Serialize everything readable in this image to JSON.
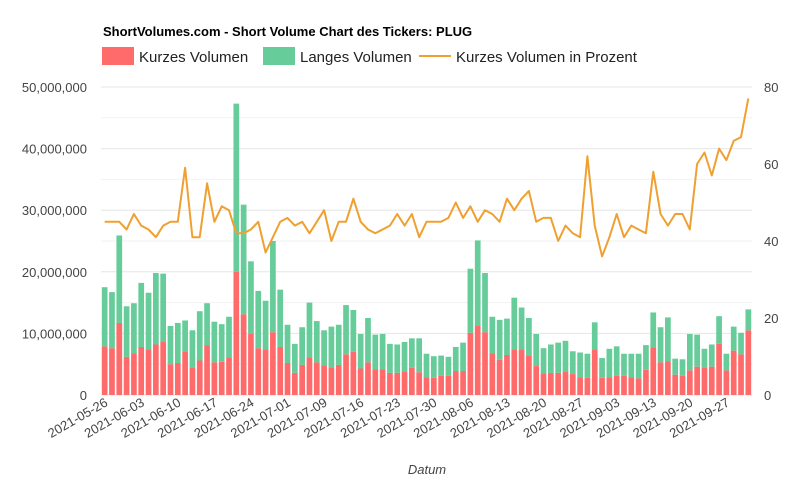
{
  "chart_data": {
    "type": "bar+line",
    "title": "ShortVolumes.com - Short Volume Chart des Tickers: PLUG",
    "xlabel": "Datum",
    "ylabel_left": "",
    "ylabel_right": "",
    "ylim_left": [
      0,
      50000000
    ],
    "ylim_right": [
      0,
      80
    ],
    "left_ticks": [
      "0",
      "10,000,000",
      "20,000,000",
      "30,000,000",
      "40,000,000",
      "50,000,000"
    ],
    "right_ticks": [
      "0",
      "20",
      "40",
      "60",
      "80"
    ],
    "legend": {
      "short": "Kurzes Volumen",
      "long": "Langes Volumen",
      "pct": "Kurzes Volumen in Prozent"
    },
    "colors": {
      "short": "#ff6b6b",
      "long": "#66cc99",
      "pct": "#f0a030",
      "grid": "#e6e6e6"
    },
    "categories": [
      "2021-05-26",
      "2021-05-27",
      "2021-05-28",
      "2021-06-01",
      "2021-06-02",
      "2021-06-03",
      "2021-06-04",
      "2021-06-07",
      "2021-06-08",
      "2021-06-09",
      "2021-06-10",
      "2021-06-11",
      "2021-06-14",
      "2021-06-15",
      "2021-06-16",
      "2021-06-17",
      "2021-06-18",
      "2021-06-21",
      "2021-06-22",
      "2021-06-23",
      "2021-06-24",
      "2021-06-25",
      "2021-06-28",
      "2021-06-29",
      "2021-06-30",
      "2021-07-01",
      "2021-07-02",
      "2021-07-06",
      "2021-07-07",
      "2021-07-08",
      "2021-07-09",
      "2021-07-12",
      "2021-07-13",
      "2021-07-14",
      "2021-07-15",
      "2021-07-16",
      "2021-07-19",
      "2021-07-20",
      "2021-07-21",
      "2021-07-22",
      "2021-07-23",
      "2021-07-26",
      "2021-07-27",
      "2021-07-28",
      "2021-07-29",
      "2021-07-30",
      "2021-08-02",
      "2021-08-03",
      "2021-08-04",
      "2021-08-05",
      "2021-08-06",
      "2021-08-09",
      "2021-08-10",
      "2021-08-11",
      "2021-08-12",
      "2021-08-13",
      "2021-08-16",
      "2021-08-17",
      "2021-08-18",
      "2021-08-19",
      "2021-08-20",
      "2021-08-23",
      "2021-08-24",
      "2021-08-25",
      "2021-08-26",
      "2021-08-27",
      "2021-08-30",
      "2021-08-31",
      "2021-09-01",
      "2021-09-02",
      "2021-09-03",
      "2021-09-07",
      "2021-09-08",
      "2021-09-09",
      "2021-09-10",
      "2021-09-13",
      "2021-09-14",
      "2021-09-15",
      "2021-09-16",
      "2021-09-17",
      "2021-09-20",
      "2021-09-21",
      "2021-09-22",
      "2021-09-23",
      "2021-09-24",
      "2021-09-27",
      "2021-09-28",
      "2021-09-29",
      "2021-09-30"
    ],
    "x_tick_labels": [
      "2021-05-26",
      "2021-06-03",
      "2021-06-10",
      "2021-06-17",
      "2021-06-24",
      "2021-07-01",
      "2021-07-09",
      "2021-07-16",
      "2021-07-23",
      "2021-07-30",
      "2021-08-06",
      "2021-08-13",
      "2021-08-20",
      "2021-08-27",
      "2021-09-03",
      "2021-09-13",
      "2021-09-20",
      "2021-09-27"
    ],
    "series": [
      {
        "name": "Kurzes Volumen",
        "values": [
          7900000,
          7600000,
          11700000,
          6200000,
          6800000,
          7800000,
          7400000,
          8200000,
          8600000,
          5000000,
          5200000,
          7100000,
          4500000,
          5600000,
          8100000,
          5300000,
          5400000,
          6100000,
          20000000,
          13100000,
          9900000,
          7600000,
          7400000,
          10200000,
          7800000,
          5200000,
          3600000,
          4900000,
          6100000,
          5300000,
          4800000,
          4500000,
          4900000,
          6600000,
          7000000,
          4300000,
          5300000,
          4200000,
          4200000,
          3600000,
          3600000,
          3800000,
          4400000,
          3700000,
          2900000,
          2800000,
          3100000,
          3100000,
          3900000,
          3900000,
          10100000,
          11200000,
          10200000,
          6800000,
          5700000,
          6500000,
          7400000,
          7400000,
          6400000,
          4700000,
          3500000,
          3600000,
          3600000,
          3800000,
          3400000,
          2900000,
          2800000,
          7400000,
          2800000,
          2900000,
          3100000,
          3100000,
          2900000,
          2700000,
          4100000,
          7700000,
          5300000,
          5500000,
          3300000,
          3100000,
          4000000,
          4600000,
          4500000,
          4600000,
          8300000,
          4000000,
          7200000,
          6600000,
          10500000
        ]
      },
      {
        "name": "Langes Volumen",
        "values": [
          9600000,
          9100000,
          14200000,
          8200000,
          8100000,
          10400000,
          9200000,
          11600000,
          11100000,
          6200000,
          6500000,
          5000000,
          6000000,
          8000000,
          6800000,
          6600000,
          6100000,
          6600000,
          27300000,
          17800000,
          11800000,
          9300000,
          7900000,
          14800000,
          9300000,
          6200000,
          4700000,
          6100000,
          8900000,
          6700000,
          5700000,
          6600000,
          6500000,
          8000000,
          6800000,
          5600000,
          7200000,
          5600000,
          5700000,
          4700000,
          4600000,
          4800000,
          4800000,
          5500000,
          3800000,
          3500000,
          3300000,
          3100000,
          3900000,
          4600000,
          10400000,
          13900000,
          9600000,
          5900000,
          6500000,
          5900000,
          8400000,
          6800000,
          6100000,
          5200000,
          4100000,
          4600000,
          4900000,
          5000000,
          3700000,
          4000000,
          3900000,
          4400000,
          3200000,
          4600000,
          4800000,
          3600000,
          3800000,
          4000000,
          4000000,
          5700000,
          5700000,
          7100000,
          2600000,
          2700000,
          5900000,
          5200000,
          3000000,
          3600000,
          4500000,
          2700000,
          3900000,
          3500000,
          3400000
        ]
      },
      {
        "name": "Kurzes Volumen in Prozent",
        "values": [
          45,
          45,
          45,
          43,
          47,
          44,
          43,
          41,
          44,
          45,
          45,
          59,
          41,
          41,
          55,
          45,
          49,
          48,
          42,
          42,
          43,
          45,
          37,
          41,
          45,
          46,
          44,
          45,
          42,
          45,
          48,
          40,
          45,
          45,
          51,
          45,
          43,
          42,
          43,
          44,
          47,
          44,
          47,
          41,
          45,
          45,
          45,
          46,
          50,
          46,
          49,
          45,
          48,
          47,
          45,
          51,
          48,
          51,
          53,
          45,
          46,
          46,
          40,
          44,
          42,
          41,
          62,
          44,
          36,
          41,
          47,
          41,
          44,
          43,
          42,
          58,
          47,
          44,
          47,
          47,
          43,
          60,
          63,
          57,
          64,
          61,
          66,
          67,
          77
        ]
      }
    ]
  }
}
